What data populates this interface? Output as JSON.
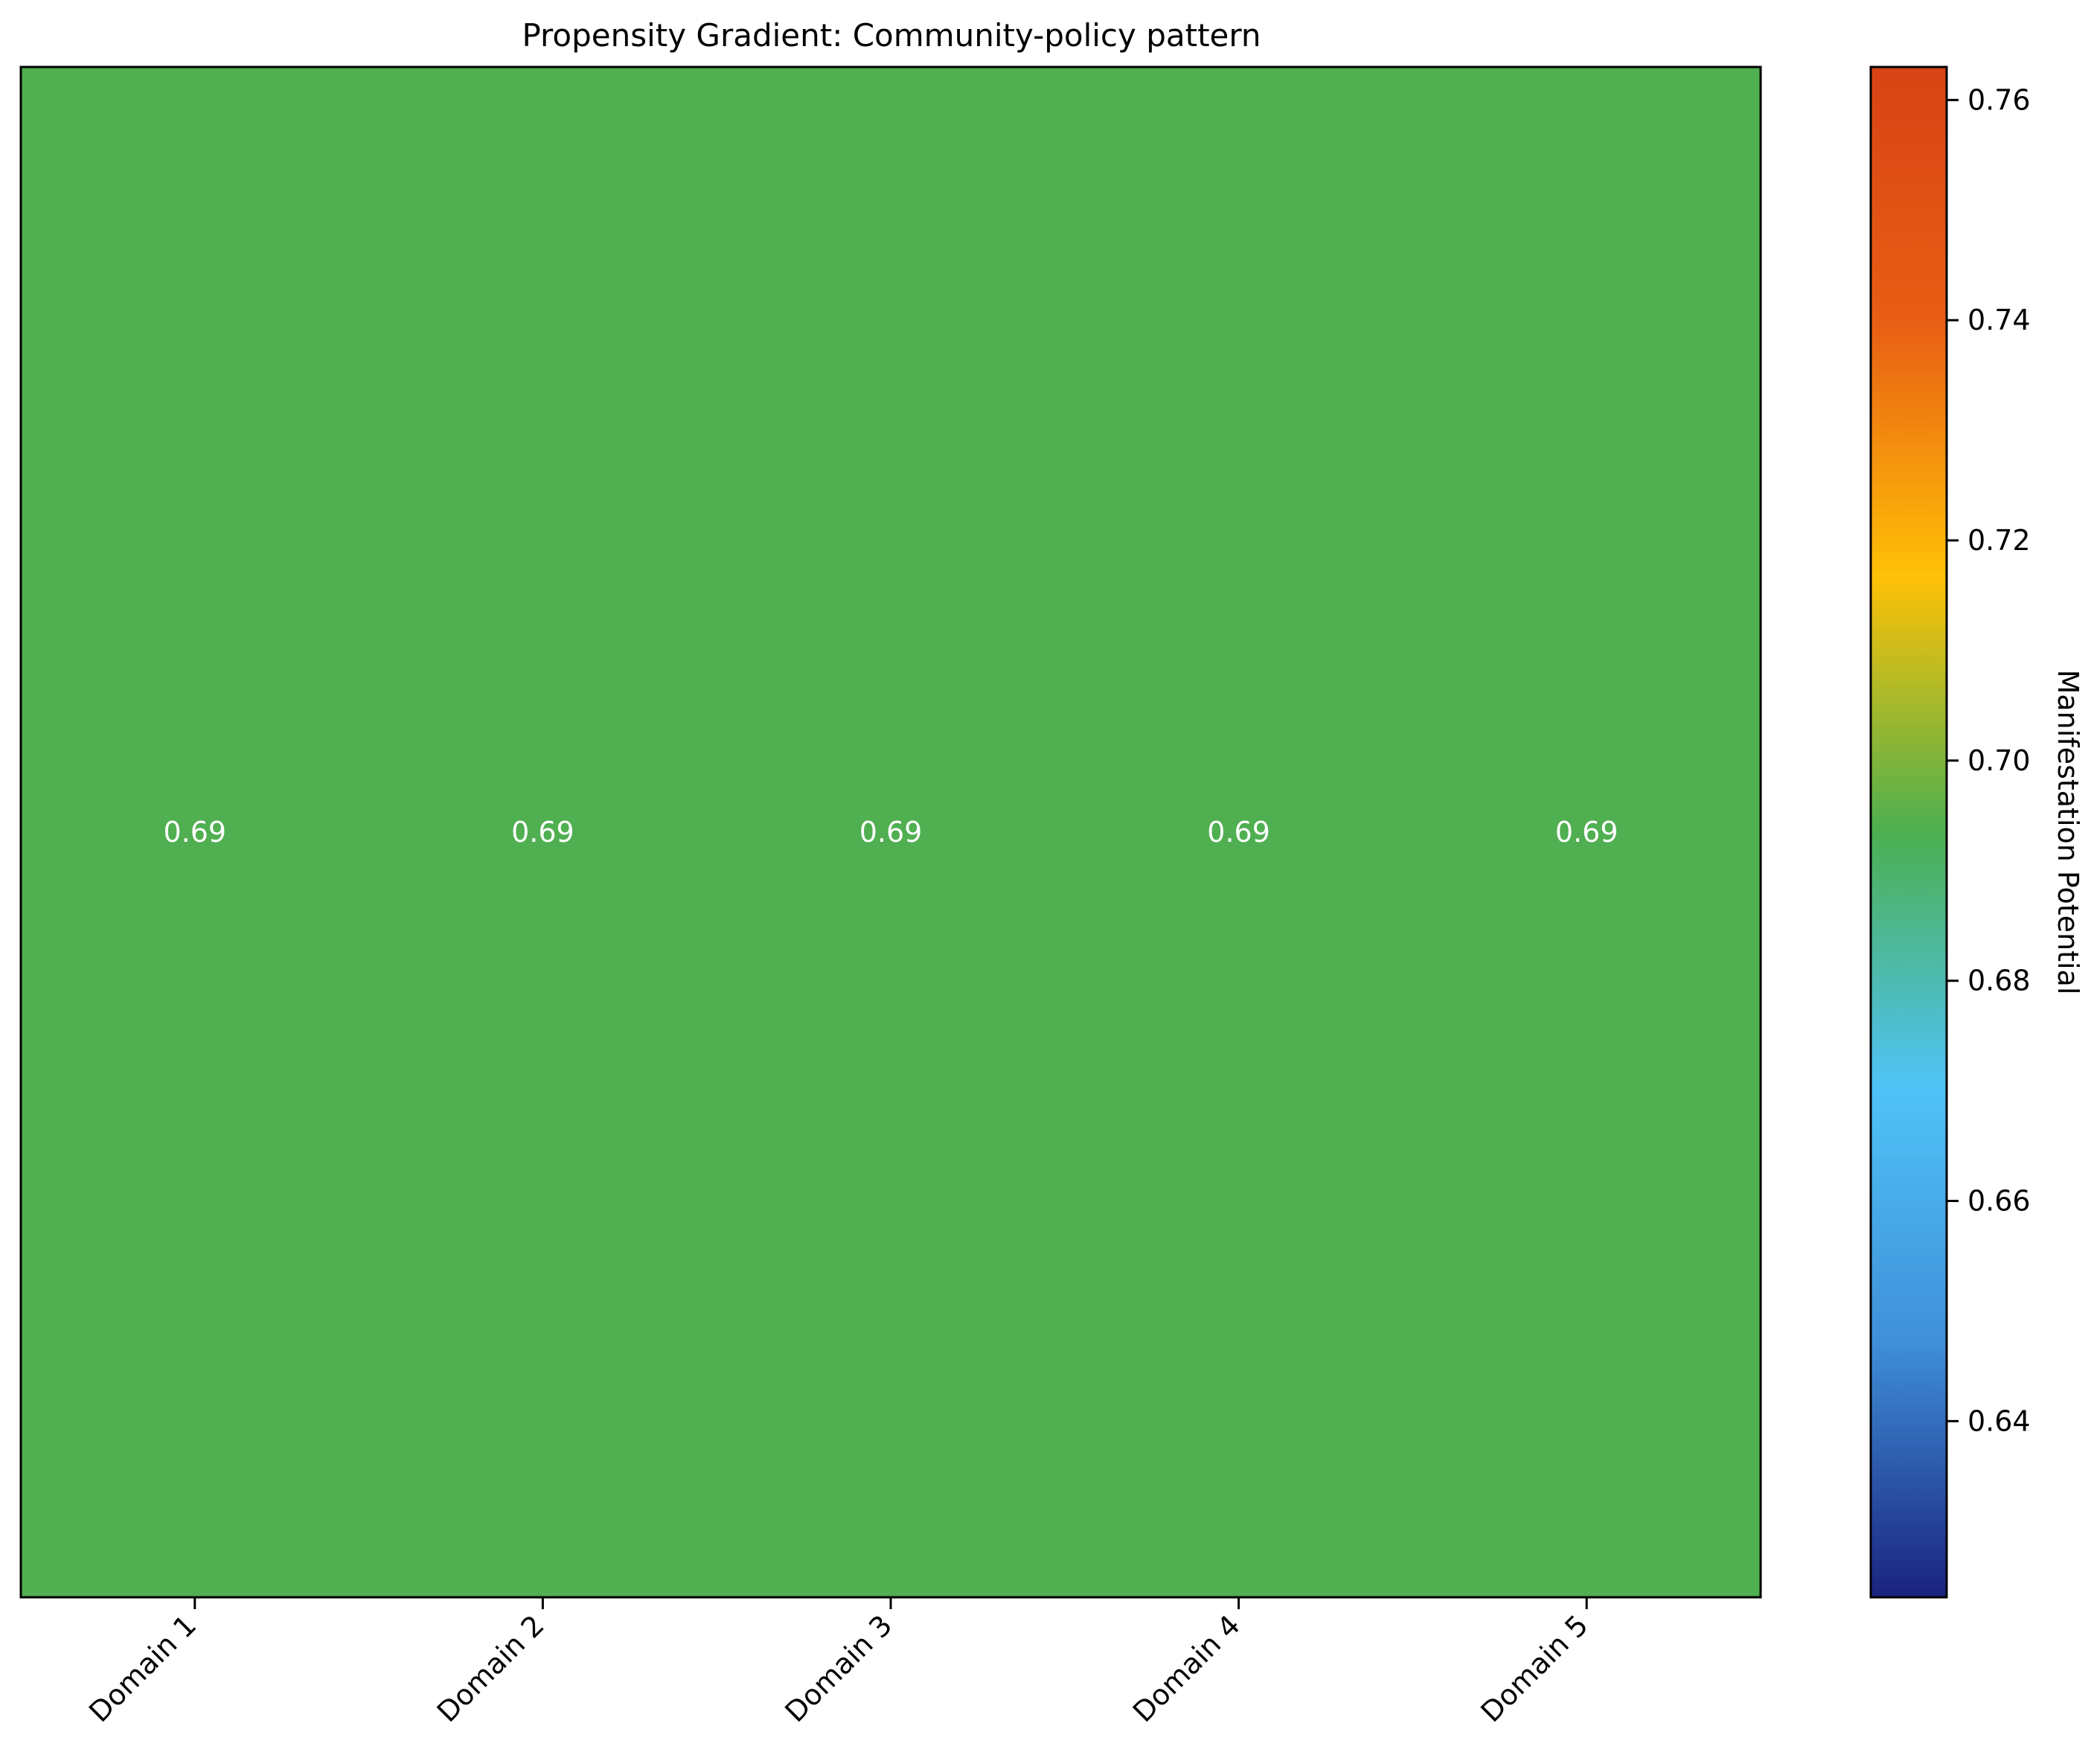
{
  "chart_data": {
    "type": "heatmap",
    "title": "Propensity Gradient: Community-policy pattern",
    "xlabel": "",
    "ylabel": "",
    "x_categories": [
      "Domain 1",
      "Domain 2",
      "Domain 3",
      "Domain 4",
      "Domain 5"
    ],
    "values": [
      [
        0.69,
        0.69,
        0.69,
        0.69,
        0.69
      ]
    ],
    "value_labels": [
      "0.69",
      "0.69",
      "0.69",
      "0.69",
      "0.69"
    ],
    "cell_color": "#50AF50",
    "annotation_color": "#ffffff",
    "grid": false,
    "colorbar": {
      "label": "Manifestation Potential",
      "range": [
        0.624,
        0.763
      ],
      "ticks": [
        0.64,
        0.66,
        0.68,
        0.7,
        0.72,
        0.74,
        0.76
      ],
      "tick_labels": [
        "0.64",
        "0.66",
        "0.68",
        "0.70",
        "0.72",
        "0.74",
        "0.76"
      ],
      "colors": [
        "#1A237E",
        "#3F8FD8",
        "#4FC3F7",
        "#4CAF50",
        "#FFC107",
        "#E85E14",
        "#D84315"
      ]
    }
  }
}
